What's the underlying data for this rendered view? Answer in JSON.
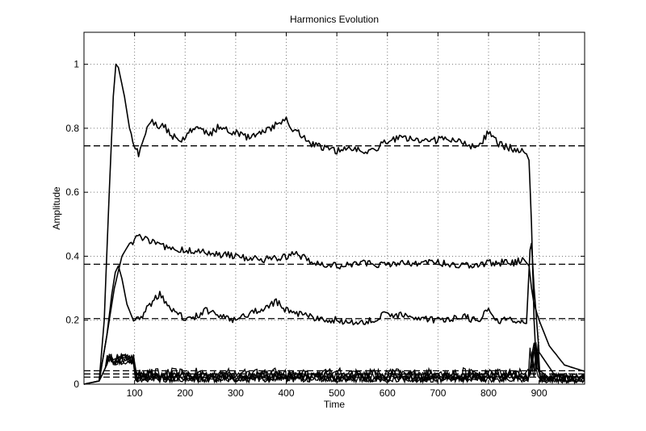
{
  "chart_data": {
    "type": "line",
    "title": "Harmonics Evolution",
    "xlabel": "Time",
    "ylabel": "Amplitude",
    "xlim": [
      0,
      990
    ],
    "ylim": [
      0,
      1.1
    ],
    "grid": true,
    "grid_style": "dotted",
    "line_color": "#000000",
    "xticks": [
      100,
      200,
      300,
      400,
      500,
      600,
      700,
      800,
      900
    ],
    "yticks": [
      0,
      0.2,
      0.4,
      0.6,
      0.8,
      1
    ],
    "yticklabels": [
      "0",
      "0.2",
      "0.4",
      "0.6",
      "0.8",
      "1"
    ],
    "reference_lines": [
      0.745,
      0.375,
      0.205,
      0.042,
      0.032,
      0.022
    ],
    "series": [
      {
        "x": [
          0,
          30,
          40,
          50,
          58,
          63,
          68,
          72,
          80,
          90,
          100,
          108,
          115,
          125,
          135,
          145,
          155,
          170,
          190,
          210,
          230,
          250,
          270,
          290,
          310,
          330,
          350,
          370,
          390,
          400,
          410,
          430,
          450,
          470,
          500,
          530,
          560,
          600,
          630,
          660,
          690,
          720,
          750,
          780,
          800,
          820,
          840,
          860,
          875,
          880,
          885,
          890,
          895,
          920,
          950,
          990
        ],
        "y": [
          0,
          0.01,
          0.2,
          0.6,
          0.9,
          1.0,
          0.99,
          0.96,
          0.9,
          0.8,
          0.75,
          0.72,
          0.76,
          0.8,
          0.83,
          0.8,
          0.82,
          0.78,
          0.76,
          0.79,
          0.8,
          0.78,
          0.81,
          0.79,
          0.78,
          0.77,
          0.79,
          0.8,
          0.82,
          0.84,
          0.8,
          0.78,
          0.75,
          0.74,
          0.73,
          0.74,
          0.72,
          0.76,
          0.77,
          0.76,
          0.76,
          0.77,
          0.75,
          0.74,
          0.79,
          0.75,
          0.74,
          0.73,
          0.72,
          0.7,
          0.5,
          0.2,
          0.05,
          0.02,
          0.01,
          0.01
        ]
      },
      {
        "x": [
          0,
          30,
          45,
          60,
          75,
          90,
          100,
          110,
          130,
          160,
          200,
          250,
          300,
          350,
          400,
          420,
          450,
          500,
          550,
          600,
          650,
          700,
          750,
          800,
          850,
          870,
          880,
          885,
          890,
          900,
          920,
          950,
          990
        ],
        "y": [
          0,
          0.01,
          0.15,
          0.3,
          0.4,
          0.44,
          0.45,
          0.46,
          0.45,
          0.43,
          0.42,
          0.41,
          0.4,
          0.39,
          0.4,
          0.41,
          0.38,
          0.37,
          0.38,
          0.37,
          0.38,
          0.38,
          0.37,
          0.38,
          0.38,
          0.39,
          0.37,
          0.3,
          0.25,
          0.2,
          0.12,
          0.06,
          0.04
        ]
      },
      {
        "x": [
          0,
          30,
          45,
          55,
          62,
          68,
          75,
          85,
          95,
          110,
          130,
          150,
          180,
          210,
          240,
          270,
          300,
          330,
          360,
          380,
          400,
          450,
          500,
          550,
          600,
          650,
          700,
          750,
          780,
          800,
          820,
          840,
          860,
          875,
          882,
          885,
          890,
          900,
          930,
          990
        ],
        "y": [
          0,
          0.01,
          0.15,
          0.28,
          0.35,
          0.37,
          0.33,
          0.25,
          0.21,
          0.2,
          0.25,
          0.28,
          0.22,
          0.2,
          0.23,
          0.21,
          0.2,
          0.22,
          0.24,
          0.26,
          0.23,
          0.21,
          0.2,
          0.19,
          0.22,
          0.21,
          0.2,
          0.21,
          0.2,
          0.23,
          0.2,
          0.2,
          0.19,
          0.19,
          0.42,
          0.44,
          0.3,
          0.1,
          0.03,
          0.02
        ]
      }
    ]
  }
}
